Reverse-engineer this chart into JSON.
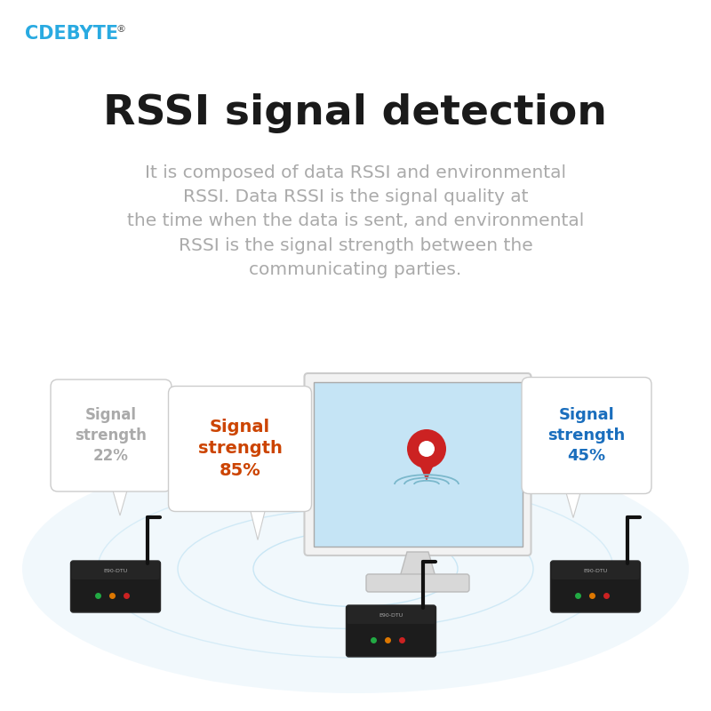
{
  "bg_color": "#ffffff",
  "logo_text": "CDEBYTE",
  "logo_registered": "®",
  "logo_color": "#29aae1",
  "logo_fontsize": 15,
  "title": "RSSI signal detection",
  "title_color": "#1a1a1a",
  "title_fontsize": 34,
  "title_fontweight": "bold",
  "body_text": "It is composed of data RSSI and environmental\nRSSI. Data RSSI is the signal quality at\nthe time when the data is sent, and environmental\nRSSI is the signal strength between the\ncommunicating parties.",
  "body_color": "#aaaaaa",
  "body_fontsize": 14.5,
  "signal_left_label": "Signal\nstrength\n22%",
  "signal_left_color": "#aaaaaa",
  "signal_center_label": "Signal\nstrength\n85%",
  "signal_center_color": "#cc4400",
  "signal_right_label": "Signal\nstrength\n45%",
  "signal_right_color": "#1a6ebd",
  "ellipse_color": "#ddeef8"
}
